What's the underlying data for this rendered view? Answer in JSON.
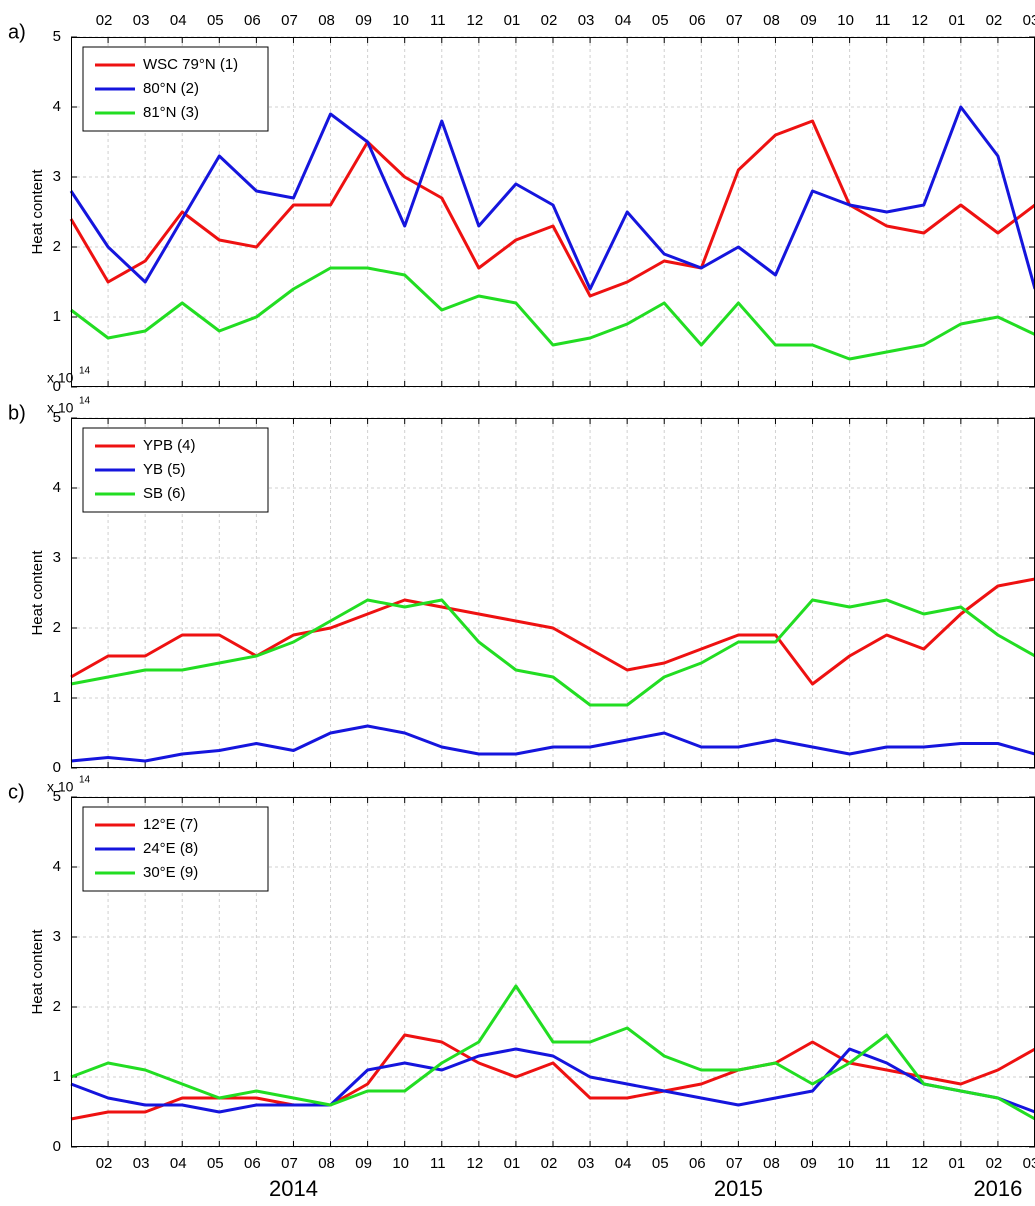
{
  "chart_data": [
    {
      "type": "line",
      "panel_label": "a)",
      "ylabel": "Heat content",
      "exponent": {
        "base": "x 10",
        "power": "14"
      },
      "xtick_label_side": "top",
      "legend": "upper left",
      "grid": true,
      "xlim": [
        "2014-01",
        "2016-03"
      ],
      "ylim": [
        0,
        5
      ],
      "yticks": [
        0,
        1,
        2,
        3,
        4,
        5
      ],
      "xticks": [
        {
          "value": "2014-02",
          "label": "02"
        },
        {
          "value": "2014-03",
          "label": "03"
        },
        {
          "value": "2014-04",
          "label": "04"
        },
        {
          "value": "2014-05",
          "label": "05"
        },
        {
          "value": "2014-06",
          "label": "06"
        },
        {
          "value": "2014-07",
          "label": "07"
        },
        {
          "value": "2014-08",
          "label": "08"
        },
        {
          "value": "2014-09",
          "label": "09"
        },
        {
          "value": "2014-10",
          "label": "10"
        },
        {
          "value": "2014-11",
          "label": "11"
        },
        {
          "value": "2014-12",
          "label": "12"
        },
        {
          "value": "2015-01",
          "label": "01"
        },
        {
          "value": "2015-02",
          "label": "02"
        },
        {
          "value": "2015-03",
          "label": "03"
        },
        {
          "value": "2015-04",
          "label": "04"
        },
        {
          "value": "2015-05",
          "label": "05"
        },
        {
          "value": "2015-06",
          "label": "06"
        },
        {
          "value": "2015-07",
          "label": "07"
        },
        {
          "value": "2015-08",
          "label": "08"
        },
        {
          "value": "2015-09",
          "label": "09"
        },
        {
          "value": "2015-10",
          "label": "10"
        },
        {
          "value": "2015-11",
          "label": "11"
        },
        {
          "value": "2015-12",
          "label": "12"
        },
        {
          "value": "2016-01",
          "label": "01"
        },
        {
          "value": "2016-02",
          "label": "02"
        },
        {
          "value": "2016-03",
          "label": "03"
        }
      ],
      "x": [
        "2014-01",
        "2014-02",
        "2014-03",
        "2014-04",
        "2014-05",
        "2014-06",
        "2014-07",
        "2014-08",
        "2014-09",
        "2014-10",
        "2014-11",
        "2014-12",
        "2015-01",
        "2015-02",
        "2015-03",
        "2015-04",
        "2015-05",
        "2015-06",
        "2015-07",
        "2015-08",
        "2015-09",
        "2015-10",
        "2015-11",
        "2015-12",
        "2016-01",
        "2016-02",
        "2016-03"
      ],
      "series": [
        {
          "name": "WSC 79°N (1)",
          "color": "#ee1111",
          "values": [
            2.4,
            1.5,
            1.8,
            2.5,
            2.1,
            2.0,
            2.6,
            2.6,
            3.5,
            3.0,
            2.7,
            1.7,
            2.1,
            2.3,
            1.3,
            1.5,
            1.8,
            1.7,
            3.1,
            3.6,
            3.8,
            2.6,
            2.3,
            2.2,
            2.6,
            2.2,
            2.6
          ]
        },
        {
          "name": "80°N (2)",
          "color": "#1515dd",
          "values": [
            2.8,
            2.0,
            1.5,
            2.4,
            3.3,
            2.8,
            2.7,
            3.9,
            3.5,
            2.3,
            3.8,
            2.3,
            2.9,
            2.6,
            1.4,
            2.5,
            1.9,
            1.7,
            2.0,
            1.6,
            2.8,
            2.6,
            2.5,
            2.6,
            4.0,
            3.3,
            1.4
          ]
        },
        {
          "name": "81°N (3)",
          "color": "#22dd22",
          "values": [
            1.1,
            0.7,
            0.8,
            1.2,
            0.8,
            1.0,
            1.4,
            1.7,
            1.7,
            1.6,
            1.1,
            1.3,
            1.2,
            0.6,
            0.7,
            0.9,
            1.2,
            0.6,
            1.2,
            0.6,
            0.6,
            0.4,
            0.5,
            0.6,
            0.9,
            1.0,
            0.75
          ]
        }
      ]
    },
    {
      "type": "line",
      "panel_label": "b)",
      "ylabel": "Heat content",
      "exponent": {
        "base": "x 10",
        "power": "14"
      },
      "xtick_label_side": "none",
      "legend": "upper left",
      "grid": true,
      "xlim": [
        "2014-01",
        "2016-03"
      ],
      "ylim": [
        0,
        5
      ],
      "yticks": [
        0,
        1,
        2,
        3,
        4,
        5
      ],
      "xticks": [
        "2014-02",
        "2014-03",
        "2014-04",
        "2014-05",
        "2014-06",
        "2014-07",
        "2014-08",
        "2014-09",
        "2014-10",
        "2014-11",
        "2014-12",
        "2015-01",
        "2015-02",
        "2015-03",
        "2015-04",
        "2015-05",
        "2015-06",
        "2015-07",
        "2015-08",
        "2015-09",
        "2015-10",
        "2015-11",
        "2015-12",
        "2016-01",
        "2016-02",
        "2016-03"
      ],
      "x": [
        "2014-01",
        "2014-02",
        "2014-03",
        "2014-04",
        "2014-05",
        "2014-06",
        "2014-07",
        "2014-08",
        "2014-09",
        "2014-10",
        "2014-11",
        "2014-12",
        "2015-01",
        "2015-02",
        "2015-03",
        "2015-04",
        "2015-05",
        "2015-06",
        "2015-07",
        "2015-08",
        "2015-09",
        "2015-10",
        "2015-11",
        "2015-12",
        "2016-01",
        "2016-02",
        "2016-03"
      ],
      "series": [
        {
          "name": "YPB (4)",
          "color": "#ee1111",
          "values": [
            1.3,
            1.6,
            1.6,
            1.9,
            1.9,
            1.6,
            1.9,
            2.0,
            2.2,
            2.4,
            2.3,
            2.2,
            2.1,
            2.0,
            1.7,
            1.4,
            1.5,
            1.7,
            1.9,
            1.9,
            1.2,
            1.6,
            1.9,
            1.7,
            2.2,
            2.6,
            2.7
          ]
        },
        {
          "name": "YB (5)",
          "color": "#1515dd",
          "values": [
            0.1,
            0.15,
            0.1,
            0.2,
            0.25,
            0.35,
            0.25,
            0.5,
            0.6,
            0.5,
            0.3,
            0.2,
            0.2,
            0.3,
            0.3,
            0.4,
            0.5,
            0.3,
            0.3,
            0.4,
            0.3,
            0.2,
            0.3,
            0.3,
            0.35,
            0.35,
            0.2
          ]
        },
        {
          "name": "SB (6)",
          "color": "#22dd22",
          "values": [
            1.2,
            1.3,
            1.4,
            1.4,
            1.5,
            1.6,
            1.8,
            2.1,
            2.4,
            2.3,
            2.4,
            1.8,
            1.4,
            1.3,
            0.9,
            0.9,
            1.3,
            1.5,
            1.8,
            1.8,
            2.4,
            2.3,
            2.4,
            2.2,
            2.3,
            1.9,
            1.6
          ]
        }
      ]
    },
    {
      "type": "line",
      "panel_label": "c)",
      "ylabel": "Heat content",
      "exponent": {
        "base": "x 10",
        "power": "14"
      },
      "xtick_label_side": "bottom",
      "legend": "upper left",
      "grid": true,
      "years": [
        "2014",
        "2015",
        "2016"
      ],
      "xlim": [
        "2014-01",
        "2016-03"
      ],
      "ylim": [
        0,
        5
      ],
      "yticks": [
        0,
        1,
        2,
        3,
        4,
        5
      ],
      "xticks": [
        {
          "value": "2014-02",
          "label": "02"
        },
        {
          "value": "2014-03",
          "label": "03"
        },
        {
          "value": "2014-04",
          "label": "04"
        },
        {
          "value": "2014-05",
          "label": "05"
        },
        {
          "value": "2014-06",
          "label": "06"
        },
        {
          "value": "2014-07",
          "label": "07"
        },
        {
          "value": "2014-08",
          "label": "08"
        },
        {
          "value": "2014-09",
          "label": "09"
        },
        {
          "value": "2014-10",
          "label": "10"
        },
        {
          "value": "2014-11",
          "label": "11"
        },
        {
          "value": "2014-12",
          "label": "12"
        },
        {
          "value": "2015-01",
          "label": "01"
        },
        {
          "value": "2015-02",
          "label": "02"
        },
        {
          "value": "2015-03",
          "label": "03"
        },
        {
          "value": "2015-04",
          "label": "04"
        },
        {
          "value": "2015-05",
          "label": "05"
        },
        {
          "value": "2015-06",
          "label": "06"
        },
        {
          "value": "2015-07",
          "label": "07"
        },
        {
          "value": "2015-08",
          "label": "08"
        },
        {
          "value": "2015-09",
          "label": "09"
        },
        {
          "value": "2015-10",
          "label": "10"
        },
        {
          "value": "2015-11",
          "label": "11"
        },
        {
          "value": "2015-12",
          "label": "12"
        },
        {
          "value": "2016-01",
          "label": "01"
        },
        {
          "value": "2016-02",
          "label": "02"
        },
        {
          "value": "2016-03",
          "label": "03"
        }
      ],
      "x": [
        "2014-01",
        "2014-02",
        "2014-03",
        "2014-04",
        "2014-05",
        "2014-06",
        "2014-07",
        "2014-08",
        "2014-09",
        "2014-10",
        "2014-11",
        "2014-12",
        "2015-01",
        "2015-02",
        "2015-03",
        "2015-04",
        "2015-05",
        "2015-06",
        "2015-07",
        "2015-08",
        "2015-09",
        "2015-10",
        "2015-11",
        "2015-12",
        "2016-01",
        "2016-02",
        "2016-03"
      ],
      "series": [
        {
          "name": "12°E (7)",
          "color": "#ee1111",
          "values": [
            0.4,
            0.5,
            0.5,
            0.7,
            0.7,
            0.7,
            0.6,
            0.6,
            0.9,
            1.6,
            1.5,
            1.2,
            1.0,
            1.2,
            0.7,
            0.7,
            0.8,
            0.9,
            1.1,
            1.2,
            1.5,
            1.2,
            1.1,
            1.0,
            0.9,
            1.1,
            1.4
          ]
        },
        {
          "name": "24°E (8)",
          "color": "#1515dd",
          "values": [
            0.9,
            0.7,
            0.6,
            0.6,
            0.5,
            0.6,
            0.6,
            0.6,
            1.1,
            1.2,
            1.1,
            1.3,
            1.4,
            1.3,
            1.0,
            0.9,
            0.8,
            0.7,
            0.6,
            0.7,
            0.8,
            1.4,
            1.2,
            0.9,
            0.8,
            0.7,
            0.5
          ]
        },
        {
          "name": "30°E (9)",
          "color": "#22dd22",
          "values": [
            1.0,
            1.2,
            1.1,
            0.9,
            0.7,
            0.8,
            0.7,
            0.6,
            0.8,
            0.8,
            1.2,
            1.5,
            2.3,
            1.5,
            1.5,
            1.7,
            1.3,
            1.1,
            1.1,
            1.2,
            0.9,
            1.2,
            1.6,
            0.9,
            0.8,
            0.7,
            0.4
          ]
        }
      ]
    }
  ]
}
